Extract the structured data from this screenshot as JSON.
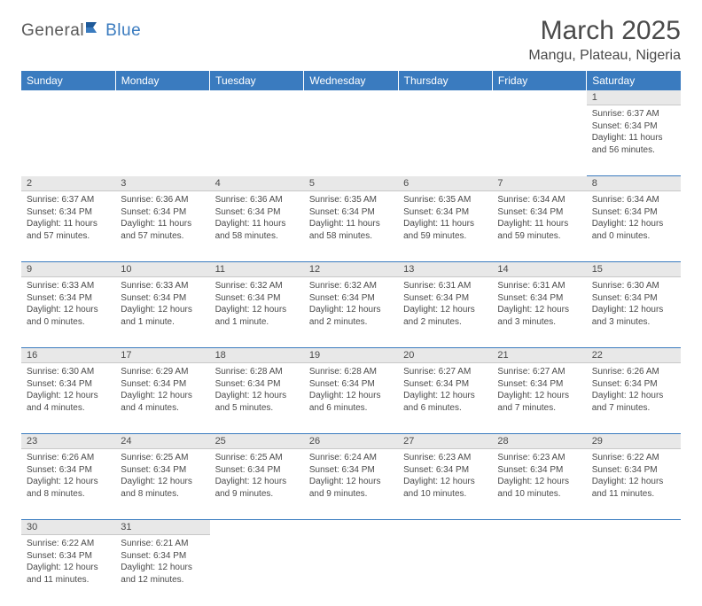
{
  "logo": {
    "part1": "General",
    "part2": "Blue"
  },
  "title": "March 2025",
  "location": "Mangu, Plateau, Nigeria",
  "weekdays": [
    "Sunday",
    "Monday",
    "Tuesday",
    "Wednesday",
    "Thursday",
    "Friday",
    "Saturday"
  ],
  "colors": {
    "header_bg": "#3a7bbf",
    "header_text": "#ffffff",
    "daynum_bg": "#e8e8e8",
    "cell_border": "#3a7bbf",
    "text": "#4a4a4a"
  },
  "weeks": [
    {
      "nums": [
        "",
        "",
        "",
        "",
        "",
        "",
        "1"
      ],
      "cells": [
        "",
        "",
        "",
        "",
        "",
        "",
        "Sunrise: 6:37 AM\nSunset: 6:34 PM\nDaylight: 11 hours and 56 minutes."
      ]
    },
    {
      "nums": [
        "2",
        "3",
        "4",
        "5",
        "6",
        "7",
        "8"
      ],
      "cells": [
        "Sunrise: 6:37 AM\nSunset: 6:34 PM\nDaylight: 11 hours and 57 minutes.",
        "Sunrise: 6:36 AM\nSunset: 6:34 PM\nDaylight: 11 hours and 57 minutes.",
        "Sunrise: 6:36 AM\nSunset: 6:34 PM\nDaylight: 11 hours and 58 minutes.",
        "Sunrise: 6:35 AM\nSunset: 6:34 PM\nDaylight: 11 hours and 58 minutes.",
        "Sunrise: 6:35 AM\nSunset: 6:34 PM\nDaylight: 11 hours and 59 minutes.",
        "Sunrise: 6:34 AM\nSunset: 6:34 PM\nDaylight: 11 hours and 59 minutes.",
        "Sunrise: 6:34 AM\nSunset: 6:34 PM\nDaylight: 12 hours and 0 minutes."
      ]
    },
    {
      "nums": [
        "9",
        "10",
        "11",
        "12",
        "13",
        "14",
        "15"
      ],
      "cells": [
        "Sunrise: 6:33 AM\nSunset: 6:34 PM\nDaylight: 12 hours and 0 minutes.",
        "Sunrise: 6:33 AM\nSunset: 6:34 PM\nDaylight: 12 hours and 1 minute.",
        "Sunrise: 6:32 AM\nSunset: 6:34 PM\nDaylight: 12 hours and 1 minute.",
        "Sunrise: 6:32 AM\nSunset: 6:34 PM\nDaylight: 12 hours and 2 minutes.",
        "Sunrise: 6:31 AM\nSunset: 6:34 PM\nDaylight: 12 hours and 2 minutes.",
        "Sunrise: 6:31 AM\nSunset: 6:34 PM\nDaylight: 12 hours and 3 minutes.",
        "Sunrise: 6:30 AM\nSunset: 6:34 PM\nDaylight: 12 hours and 3 minutes."
      ]
    },
    {
      "nums": [
        "16",
        "17",
        "18",
        "19",
        "20",
        "21",
        "22"
      ],
      "cells": [
        "Sunrise: 6:30 AM\nSunset: 6:34 PM\nDaylight: 12 hours and 4 minutes.",
        "Sunrise: 6:29 AM\nSunset: 6:34 PM\nDaylight: 12 hours and 4 minutes.",
        "Sunrise: 6:28 AM\nSunset: 6:34 PM\nDaylight: 12 hours and 5 minutes.",
        "Sunrise: 6:28 AM\nSunset: 6:34 PM\nDaylight: 12 hours and 6 minutes.",
        "Sunrise: 6:27 AM\nSunset: 6:34 PM\nDaylight: 12 hours and 6 minutes.",
        "Sunrise: 6:27 AM\nSunset: 6:34 PM\nDaylight: 12 hours and 7 minutes.",
        "Sunrise: 6:26 AM\nSunset: 6:34 PM\nDaylight: 12 hours and 7 minutes."
      ]
    },
    {
      "nums": [
        "23",
        "24",
        "25",
        "26",
        "27",
        "28",
        "29"
      ],
      "cells": [
        "Sunrise: 6:26 AM\nSunset: 6:34 PM\nDaylight: 12 hours and 8 minutes.",
        "Sunrise: 6:25 AM\nSunset: 6:34 PM\nDaylight: 12 hours and 8 minutes.",
        "Sunrise: 6:25 AM\nSunset: 6:34 PM\nDaylight: 12 hours and 9 minutes.",
        "Sunrise: 6:24 AM\nSunset: 6:34 PM\nDaylight: 12 hours and 9 minutes.",
        "Sunrise: 6:23 AM\nSunset: 6:34 PM\nDaylight: 12 hours and 10 minutes.",
        "Sunrise: 6:23 AM\nSunset: 6:34 PM\nDaylight: 12 hours and 10 minutes.",
        "Sunrise: 6:22 AM\nSunset: 6:34 PM\nDaylight: 12 hours and 11 minutes."
      ]
    },
    {
      "nums": [
        "30",
        "31",
        "",
        "",
        "",
        "",
        ""
      ],
      "cells": [
        "Sunrise: 6:22 AM\nSunset: 6:34 PM\nDaylight: 12 hours and 11 minutes.",
        "Sunrise: 6:21 AM\nSunset: 6:34 PM\nDaylight: 12 hours and 12 minutes.",
        "",
        "",
        "",
        "",
        ""
      ]
    }
  ]
}
